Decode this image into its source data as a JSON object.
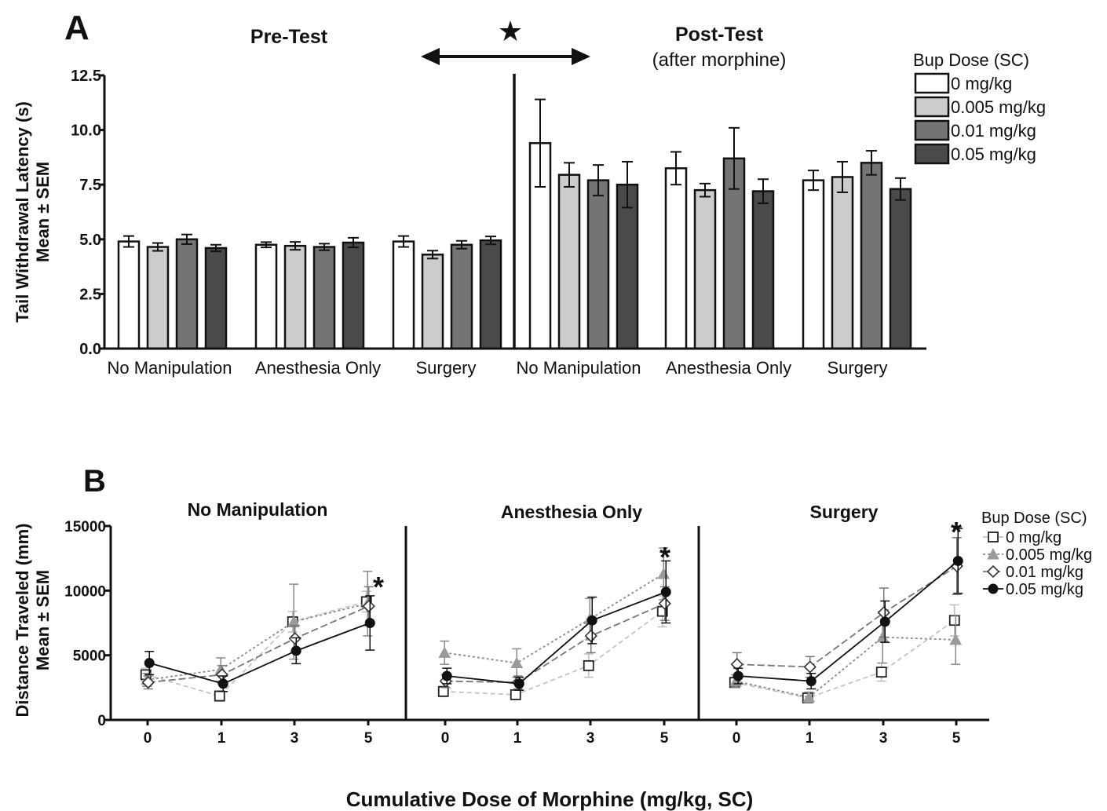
{
  "panel_a": {
    "letter": "A",
    "pre_title": "Pre-Test",
    "post_title": "Post-Test",
    "post_subtitle": "(after morphine)",
    "significance_marker": "★",
    "ylabel_line1": "Tail Withdrawal Latency (s)",
    "ylabel_line2": "Mean ± SEM",
    "legend_title": "Bup Dose (SC)"
  },
  "panel_b": {
    "letter": "B",
    "ylabel_line1": "Distance Traveled (mm)",
    "ylabel_line2": "Mean ± SEM",
    "xlabel": "Cumulative Dose of Morphine (mg/kg, SC)",
    "legend_title": "Bup Dose (SC)",
    "significance_marker": "*"
  },
  "colors": {
    "dose_0": "#ffffff",
    "dose_0005": "#cccccc",
    "dose_001": "#747474",
    "dose_005": "#4a4a4a",
    "axis": "#111111"
  },
  "chart_data": [
    {
      "type": "bar",
      "ylim": [
        0,
        12.5
      ],
      "yticks": [
        "0.0",
        "2.5",
        "5.0",
        "7.5",
        "10.0",
        "12.5"
      ],
      "categories": [
        "No Manipulation",
        "Anesthesia Only",
        "Surgery",
        "No Manipulation",
        "Anesthesia Only",
        "Surgery"
      ],
      "series": [
        {
          "name": "0 mg/kg",
          "values": [
            4.9,
            4.75,
            4.9,
            9.4,
            8.25,
            7.7
          ],
          "sem": [
            0.25,
            0.12,
            0.25,
            2.0,
            0.75,
            0.45
          ]
        },
        {
          "name": "0.005 mg/kg",
          "values": [
            4.65,
            4.7,
            4.3,
            7.95,
            7.25,
            7.85
          ],
          "sem": [
            0.18,
            0.18,
            0.18,
            0.55,
            0.3,
            0.7
          ]
        },
        {
          "name": "0.01 mg/kg",
          "values": [
            5.0,
            4.65,
            4.75,
            7.7,
            8.7,
            8.5
          ],
          "sem": [
            0.22,
            0.15,
            0.18,
            0.7,
            1.4,
            0.55
          ]
        },
        {
          "name": "0.05 mg/kg",
          "values": [
            4.6,
            4.85,
            4.95,
            7.5,
            7.2,
            7.3
          ],
          "sem": [
            0.15,
            0.22,
            0.18,
            1.05,
            0.55,
            0.5
          ]
        }
      ],
      "group_labels": [
        "Pre-Test",
        "Post-Test"
      ],
      "legend_position": "right"
    },
    {
      "type": "line",
      "title": "No Manipulation",
      "x": [
        "0",
        "1",
        "3",
        "5"
      ],
      "ylim": [
        0,
        15000
      ],
      "yticks": [
        "0",
        "5000",
        "10000",
        "15000"
      ],
      "series": [
        {
          "name": "0 mg/kg",
          "values": [
            3500,
            1850,
            7600,
            9150
          ],
          "sem": [
            500,
            400,
            800,
            800
          ]
        },
        {
          "name": "0.005 mg/kg",
          "values": [
            3100,
            3900,
            7600,
            9000
          ],
          "sem": [
            500,
            900,
            2900,
            2500
          ]
        },
        {
          "name": "0.01 mg/kg",
          "values": [
            2900,
            3500,
            6300,
            8800
          ],
          "sem": [
            500,
            700,
            1000,
            1500
          ]
        },
        {
          "name": "0.05 mg/kg",
          "values": [
            4400,
            2800,
            5350,
            7500
          ],
          "sem": [
            900,
            600,
            1000,
            2100
          ]
        }
      ],
      "significance": [
        3
      ]
    },
    {
      "type": "line",
      "title": "Anesthesia Only",
      "x": [
        "0",
        "1",
        "3",
        "5"
      ],
      "ylim": [
        0,
        15000
      ],
      "yticks": [],
      "series": [
        {
          "name": "0 mg/kg",
          "values": [
            2200,
            1950,
            4200,
            8400
          ],
          "sem": [
            400,
            300,
            900,
            1200
          ]
        },
        {
          "name": "0.005 mg/kg",
          "values": [
            5200,
            4400,
            7800,
            11300
          ],
          "sem": [
            900,
            1100,
            1600,
            2000
          ]
        },
        {
          "name": "0.01 mg/kg",
          "values": [
            3000,
            2900,
            6500,
            9000
          ],
          "sem": [
            500,
            500,
            1300,
            1300
          ]
        },
        {
          "name": "0.05 mg/kg",
          "values": [
            3400,
            2800,
            7700,
            9900
          ],
          "sem": [
            600,
            500,
            1800,
            2400
          ]
        }
      ],
      "significance": [
        3
      ]
    },
    {
      "type": "line",
      "title": "Surgery",
      "x": [
        "0",
        "1",
        "3",
        "5"
      ],
      "ylim": [
        0,
        15000
      ],
      "yticks": [],
      "series": [
        {
          "name": "0 mg/kg",
          "values": [
            2900,
            1700,
            3700,
            7700
          ],
          "sem": [
            400,
            300,
            700,
            1200
          ]
        },
        {
          "name": "0.005 mg/kg",
          "values": [
            3000,
            1750,
            6400,
            6200
          ],
          "sem": [
            500,
            400,
            2000,
            1900
          ]
        },
        {
          "name": "0.01 mg/kg",
          "values": [
            4300,
            4100,
            8300,
            11900
          ],
          "sem": [
            900,
            800,
            1900,
            2200
          ]
        },
        {
          "name": "0.05 mg/kg",
          "values": [
            3400,
            3000,
            7600,
            12300
          ],
          "sem": [
            600,
            600,
            1600,
            2500
          ]
        }
      ],
      "significance": [
        3
      ]
    }
  ]
}
